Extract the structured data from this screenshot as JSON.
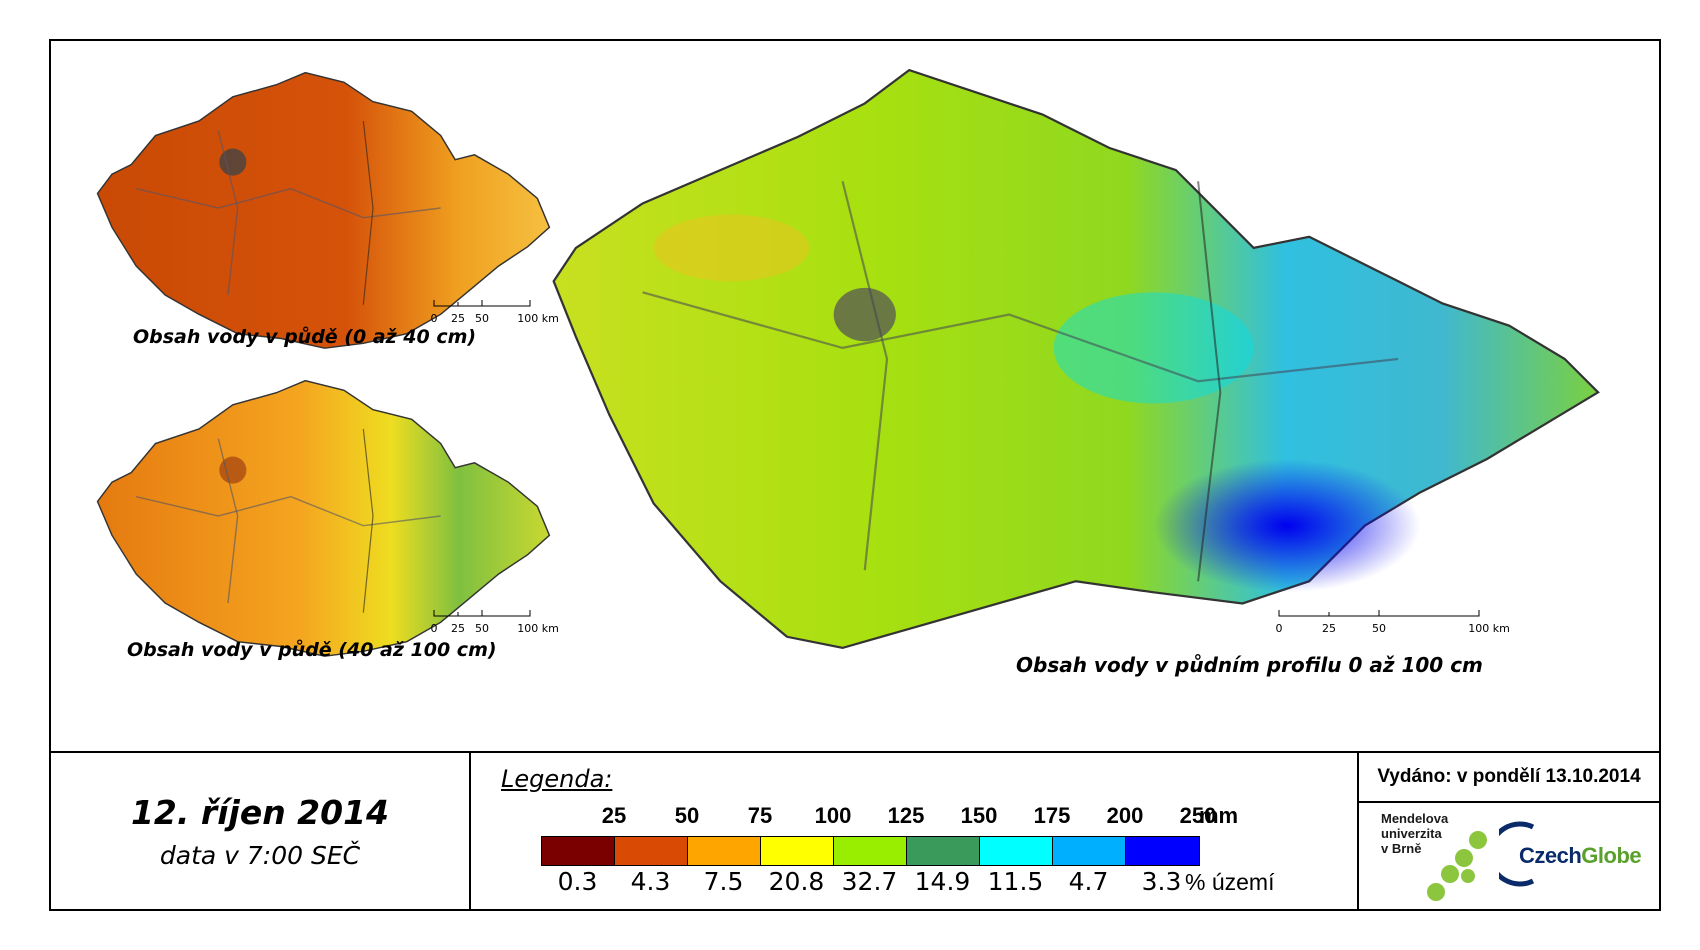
{
  "maps": {
    "small_top": {
      "caption": "Obsah vody v půdě (0 až 40 cm)"
    },
    "small_bottom": {
      "caption": "Obsah vody v půdě (40 až 100 cm)"
    },
    "large": {
      "caption": "Obsah vody v půdním profilu 0 až 100 cm"
    },
    "scale_labels": [
      "0",
      "25",
      "50",
      "100 km"
    ]
  },
  "date": {
    "main": "12. říjen 2014",
    "sub": "data v 7:00 SEČ"
  },
  "legend": {
    "title": "Legenda:",
    "mm_unit": "mm",
    "pct_unit": "% území",
    "mm_breaks": [
      "25",
      "50",
      "75",
      "100",
      "125",
      "150",
      "175",
      "200",
      "250"
    ],
    "classes": [
      {
        "color": "#7a0000",
        "pct": "0.3"
      },
      {
        "color": "#d94a05",
        "pct": "4.3"
      },
      {
        "color": "#ffa500",
        "pct": "7.5"
      },
      {
        "color": "#ffff00",
        "pct": "20.8"
      },
      {
        "color": "#99ee00",
        "pct": "32.7"
      },
      {
        "color": "#3a9a5c",
        "pct": "14.9"
      },
      {
        "color": "#00ffff",
        "pct": "11.5"
      },
      {
        "color": "#00b0ff",
        "pct": "4.7"
      },
      {
        "color": "#0000ff",
        "pct": "3.3"
      }
    ]
  },
  "issued": "Vydáno: v pondělí 13.10.2014",
  "logos": {
    "mendel": [
      "Mendelova",
      "univerzita",
      "v Brně"
    ],
    "czechglobe": "CzechGlobe"
  }
}
